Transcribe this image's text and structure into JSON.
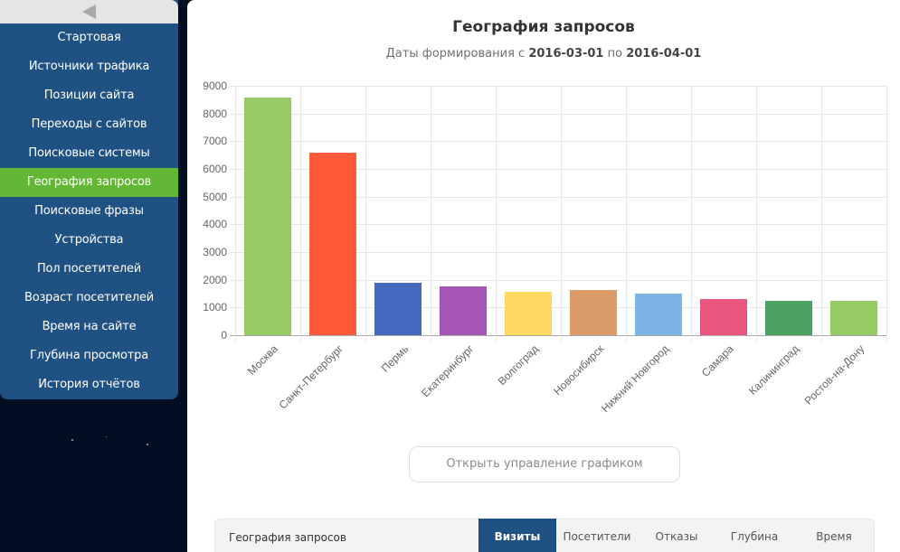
{
  "sidebar": {
    "collapse_icon": "triangle-left-icon",
    "items": [
      {
        "label": "Стартовая",
        "active": false
      },
      {
        "label": "Источники трафика",
        "active": false
      },
      {
        "label": "Позиции сайта",
        "active": false
      },
      {
        "label": "Переходы с сайтов",
        "active": false
      },
      {
        "label": "Поисковые системы",
        "active": false
      },
      {
        "label": "География запросов",
        "active": true
      },
      {
        "label": "Поисковые фразы",
        "active": false
      },
      {
        "label": "Устройства",
        "active": false
      },
      {
        "label": "Пол посетителей",
        "active": false
      },
      {
        "label": "Возраст посетителей",
        "active": false
      },
      {
        "label": "Время на сайте",
        "active": false
      },
      {
        "label": "Глубина просмотра",
        "active": false
      },
      {
        "label": "История отчётов",
        "active": false
      }
    ]
  },
  "header": {
    "title": "География запросов",
    "subtitle_prefix": "Даты формирования с ",
    "date_from": "2016-03-01",
    "subtitle_mid": " по ",
    "date_to": "2016-04-01"
  },
  "chart_data": {
    "type": "bar",
    "title": "География запросов",
    "subtitle": "Даты формирования с 2016-03-01 по 2016-04-01",
    "xlabel": "",
    "ylabel": "",
    "ylim": [
      0,
      9000
    ],
    "yticks": [
      0,
      1000,
      2000,
      3000,
      4000,
      5000,
      6000,
      7000,
      8000,
      9000
    ],
    "grid": true,
    "legend": "none",
    "categories": [
      "Москва",
      "Санкт-Петербург",
      "Пермь",
      "Екатеринбург",
      "Волгоград",
      "Новосибирск",
      "Нижний Новгород",
      "Самара",
      "Калининград",
      "Ростов-на-Дону"
    ],
    "values": [
      8580,
      6590,
      1890,
      1760,
      1570,
      1630,
      1500,
      1300,
      1240,
      1240
    ],
    "colors": [
      "#97cb65",
      "#ff5b3b",
      "#466abf",
      "#a655b5",
      "#ffd862",
      "#dc9c69",
      "#7ab5e5",
      "#e9557f",
      "#4ca163",
      "#97cb65"
    ]
  },
  "controls": {
    "open_chart_controls": "Открыть управление графиком"
  },
  "tabs_bar": {
    "title": "География запросов",
    "tabs": [
      {
        "label": "Визиты",
        "active": true
      },
      {
        "label": "Посетители",
        "active": false
      },
      {
        "label": "Отказы",
        "active": false
      },
      {
        "label": "Глубина",
        "active": false
      },
      {
        "label": "Время",
        "active": false
      }
    ]
  },
  "colors": {
    "sidebar_bg": "#1f5182",
    "sidebar_active": "#62b835",
    "page_bg": "#020f22",
    "tab_active": "#1f5182"
  }
}
